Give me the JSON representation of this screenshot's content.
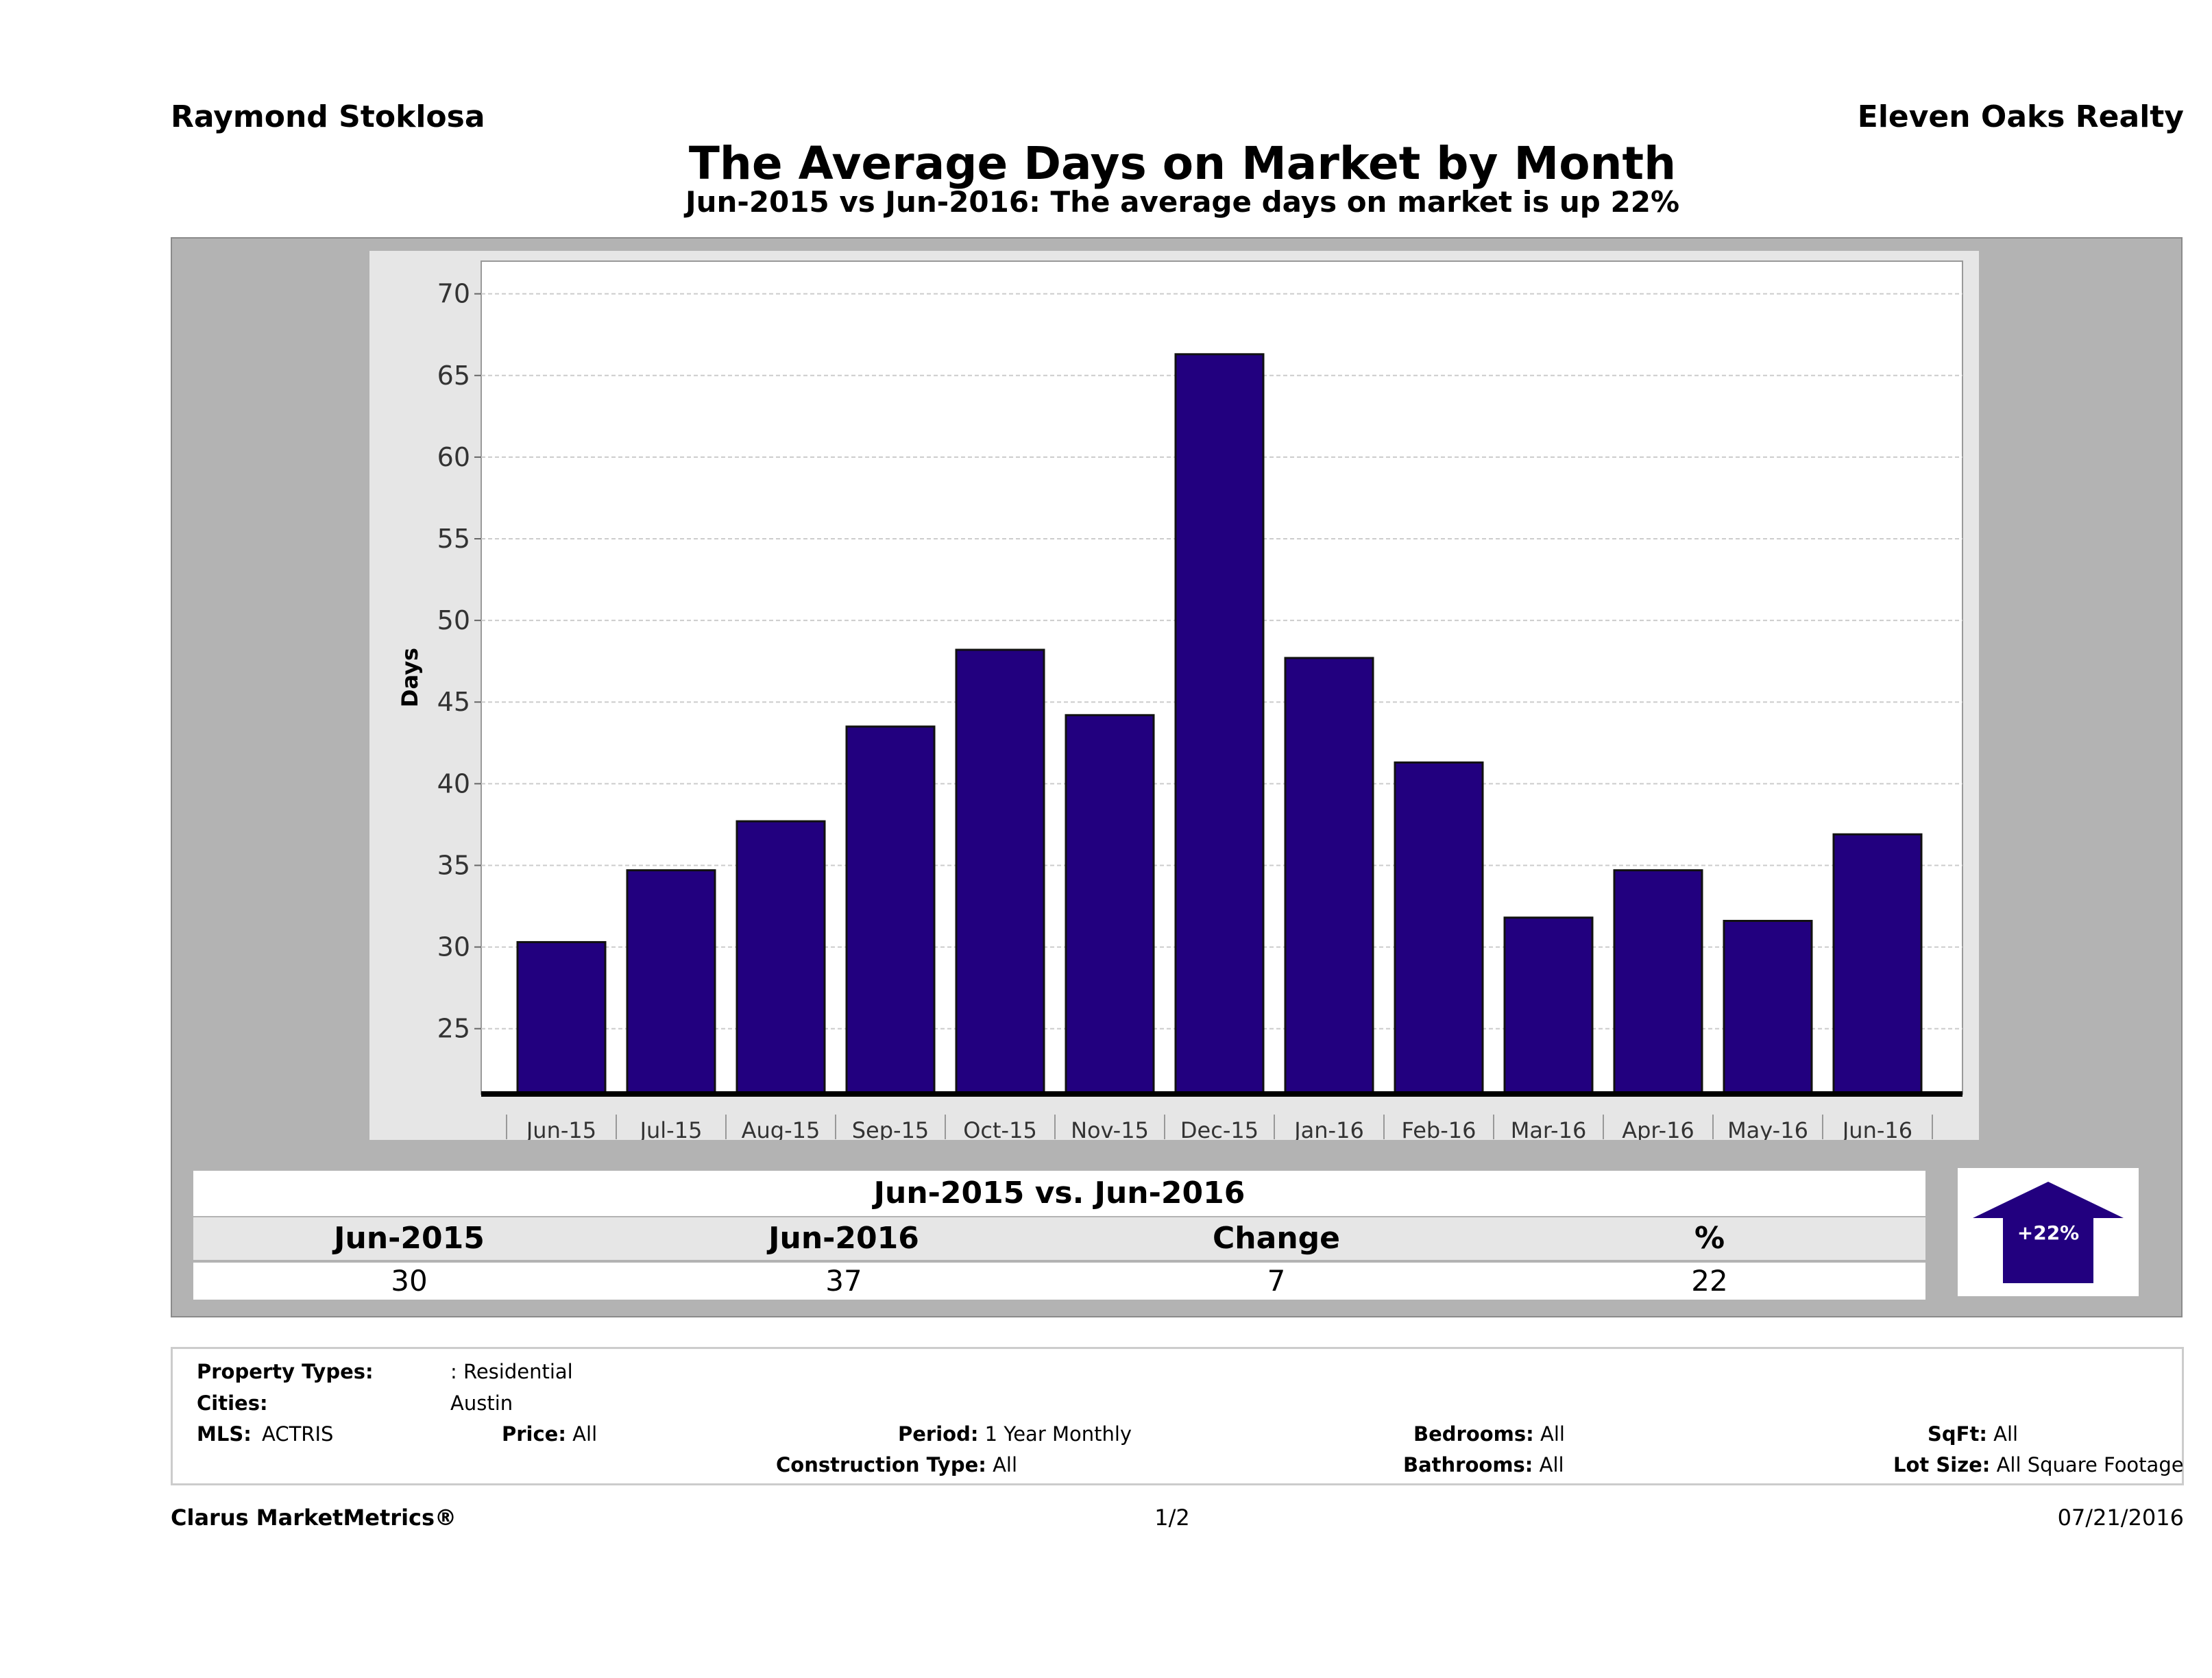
{
  "header": {
    "agent": "Raymond Stoklosa",
    "company": "Eleven Oaks Realty",
    "title": "The Average Days on Market by Month",
    "subtitle": "Jun-2015 vs Jun-2016: The average days on market is up 22%"
  },
  "chart_data": {
    "type": "bar",
    "ylabel": "Days",
    "xlabel": "",
    "ylim": [
      21,
      72
    ],
    "yticks": [
      25,
      30,
      35,
      40,
      45,
      50,
      55,
      60,
      65,
      70
    ],
    "grid": true,
    "categories": [
      "Jun-15",
      "Jul-15",
      "Aug-15",
      "Sep-15",
      "Oct-15",
      "Nov-15",
      "Dec-15",
      "Jan-16",
      "Feb-16",
      "Mar-16",
      "Apr-16",
      "May-16",
      "Jun-16"
    ],
    "values": [
      30.3,
      34.7,
      37.7,
      43.5,
      48.2,
      44.2,
      66.3,
      47.7,
      41.3,
      31.8,
      34.7,
      31.6,
      36.9
    ],
    "bar_color": "#22007f"
  },
  "summary": {
    "heading": "Jun-2015 vs. Jun-2016",
    "columns": [
      "Jun-2015",
      "Jun-2016",
      "Change",
      "%"
    ],
    "values": [
      "30",
      "37",
      "7",
      "22"
    ],
    "badge": "+22%",
    "badge_direction": "up"
  },
  "filters": {
    "property_types_label": "Property Types:",
    "property_types": ": Residential",
    "cities_label": "Cities:",
    "cities": "Austin",
    "mls_label": "MLS:",
    "mls": "ACTRIS",
    "price_label": "Price:",
    "price": "All",
    "period_label": "Period:",
    "period": "1 Year Monthly",
    "construction_label": "Construction Type:",
    "construction": "All",
    "bedrooms_label": "Bedrooms:",
    "bedrooms": "All",
    "bathrooms_label": "Bathrooms:",
    "bathrooms": "All",
    "sqft_label": "SqFt:",
    "sqft": "All",
    "lot_label": "Lot Size:",
    "lot": "All Square Footage"
  },
  "footer": {
    "brand": "Clarus MarketMetrics®",
    "page": "1/2",
    "date": "07/21/2016"
  }
}
